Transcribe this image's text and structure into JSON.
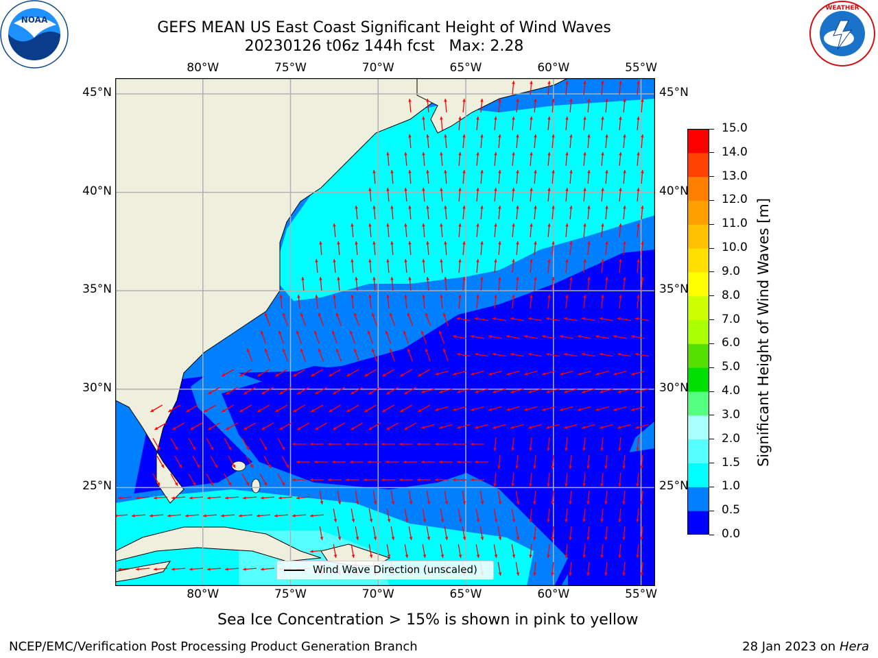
{
  "title": {
    "line1": "GEFS MEAN US East Coast Significant Height of Wind Waves",
    "line2": "20230126 t06z 144h fcst   Max: 2.28"
  },
  "map": {
    "lon_labels": [
      "80°W",
      "75°W",
      "70°W",
      "65°W",
      "60°W",
      "55°W"
    ],
    "lat_labels": [
      "45°N",
      "40°N",
      "35°N",
      "30°N",
      "25°N"
    ],
    "lon_values": [
      -80,
      -75,
      -70,
      -65,
      -60,
      -55
    ],
    "lat_values": [
      45,
      40,
      35,
      30,
      25
    ],
    "extent": {
      "lon_min": -85,
      "lon_max": -54.2,
      "lat_min": 20,
      "lat_max": 45.8
    },
    "colors": {
      "land": "#efefde",
      "grid": "#b0b0b0",
      "arrow": "#ff0000",
      "coast": "#000000"
    },
    "legend_text": "Wind Wave Direction (unscaled)"
  },
  "colorbar": {
    "levels": [
      "0.0",
      "0.5",
      "1.0",
      "1.5",
      "2.0",
      "3.0",
      "4.0",
      "5.0",
      "6.0",
      "7.0",
      "8.0",
      "9.0",
      "10.0",
      "11.0",
      "12.0",
      "13.0",
      "14.0",
      "15.0"
    ],
    "colors": [
      "#0000ff",
      "#0080ff",
      "#00ffff",
      "#55ffff",
      "#aaffff",
      "#55ff80",
      "#00e000",
      "#55e000",
      "#aaff00",
      "#ccff00",
      "#ffff00",
      "#ffe000",
      "#ffc000",
      "#ffa000",
      "#ff8000",
      "#ff4000",
      "#ff0000"
    ],
    "label": "Significant Height of Wind Waves [m]"
  },
  "logos": {
    "left": "NOAA",
    "right": "NATIONAL WEATHER SERVICE"
  },
  "footer": {
    "subtitle": "Sea Ice Concentration > 15% is shown in pink to yellow",
    "left": "NCEP/EMC/Verification Post Processing Product Generation Branch",
    "right_date": "28 Jan 2023 on ",
    "right_machine": "Hera"
  }
}
